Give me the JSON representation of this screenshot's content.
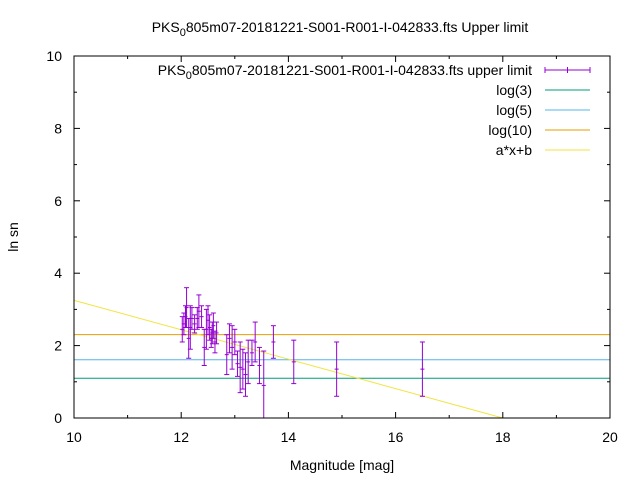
{
  "chart_data": {
    "type": "scatter",
    "title": {
      "prefix": "PKS",
      "sub": "0",
      "rest": "805m07-20181221-S001-R001-I-042833.fts Upper limit"
    },
    "xlabel": "Magnitude [mag]",
    "ylabel": "ln sn",
    "xlim": [
      10,
      20
    ],
    "ylim": [
      0,
      10
    ],
    "x_ticks": [
      "10",
      "12",
      "14",
      "16",
      "18",
      "20"
    ],
    "y_ticks": [
      "0",
      "2",
      "4",
      "6",
      "8",
      "10"
    ],
    "legend_position": "top-right",
    "legend": [
      {
        "key": "points",
        "label": {
          "prefix": "PKS",
          "sub": "0",
          "rest": "805m07-20181221-S001-R001-I-042833.fts upper limit"
        },
        "color": "#9400d3"
      },
      {
        "key": "log3",
        "label": "log(3)",
        "color": "#009e73"
      },
      {
        "key": "log5",
        "label": "log(5)",
        "color": "#56b4e9"
      },
      {
        "key": "log10",
        "label": "log(10)",
        "color": "#e69f00"
      },
      {
        "key": "fit",
        "label": "a*x+b",
        "color": "#f0e442"
      }
    ],
    "hlines": {
      "log3": 1.0986,
      "log5": 1.6094,
      "log10": 2.3026
    },
    "fit_line": {
      "points": [
        [
          10,
          3.25
        ],
        [
          18,
          0.0
        ]
      ]
    },
    "series": [
      {
        "name": "PKS0805m07-20181221-S001-R001-I-042833.fts upper limit",
        "points": [
          {
            "x": 12.02,
            "y": 2.45,
            "err": 0.35
          },
          {
            "x": 12.05,
            "y": 2.6,
            "err": 0.3
          },
          {
            "x": 12.08,
            "y": 2.8,
            "err": 0.3
          },
          {
            "x": 12.1,
            "y": 3.05,
            "err": 0.55
          },
          {
            "x": 12.14,
            "y": 2.2,
            "err": 0.55
          },
          {
            "x": 12.17,
            "y": 2.5,
            "err": 0.6
          },
          {
            "x": 12.2,
            "y": 2.75,
            "err": 0.3
          },
          {
            "x": 12.25,
            "y": 2.6,
            "err": 0.25
          },
          {
            "x": 12.3,
            "y": 2.75,
            "err": 0.3
          },
          {
            "x": 12.33,
            "y": 2.95,
            "err": 0.45
          },
          {
            "x": 12.38,
            "y": 2.8,
            "err": 0.3
          },
          {
            "x": 12.43,
            "y": 1.95,
            "err": 0.5
          },
          {
            "x": 12.47,
            "y": 2.45,
            "err": 0.55
          },
          {
            "x": 12.5,
            "y": 2.7,
            "err": 0.4
          },
          {
            "x": 12.53,
            "y": 2.5,
            "err": 0.35
          },
          {
            "x": 12.56,
            "y": 2.2,
            "err": 0.25
          },
          {
            "x": 12.58,
            "y": 2.35,
            "err": 0.3
          },
          {
            "x": 12.6,
            "y": 2.55,
            "err": 0.35
          },
          {
            "x": 12.63,
            "y": 2.1,
            "err": 0.3
          },
          {
            "x": 12.66,
            "y": 2.35,
            "err": 0.3
          },
          {
            "x": 12.85,
            "y": 1.75,
            "err": 0.55
          },
          {
            "x": 12.9,
            "y": 2.2,
            "err": 0.4
          },
          {
            "x": 12.95,
            "y": 1.95,
            "err": 0.6
          },
          {
            "x": 13.0,
            "y": 2.1,
            "err": 0.35
          },
          {
            "x": 13.05,
            "y": 1.5,
            "err": 0.35
          },
          {
            "x": 13.1,
            "y": 1.4,
            "err": 0.7
          },
          {
            "x": 13.15,
            "y": 1.35,
            "err": 0.55
          },
          {
            "x": 13.2,
            "y": 1.2,
            "err": 0.6
          },
          {
            "x": 13.25,
            "y": 1.55,
            "err": 0.6
          },
          {
            "x": 13.32,
            "y": 1.8,
            "err": 0.35
          },
          {
            "x": 13.38,
            "y": 2.1,
            "err": 0.55
          },
          {
            "x": 13.46,
            "y": 1.45,
            "err": 0.5
          },
          {
            "x": 13.54,
            "y": 0.9,
            "err": 0.95
          },
          {
            "x": 13.72,
            "y": 2.1,
            "err": 0.45
          },
          {
            "x": 14.1,
            "y": 1.55,
            "err": 0.6
          },
          {
            "x": 14.9,
            "y": 1.35,
            "err": 0.75
          },
          {
            "x": 16.5,
            "y": 1.35,
            "err": 0.75
          }
        ]
      }
    ]
  }
}
